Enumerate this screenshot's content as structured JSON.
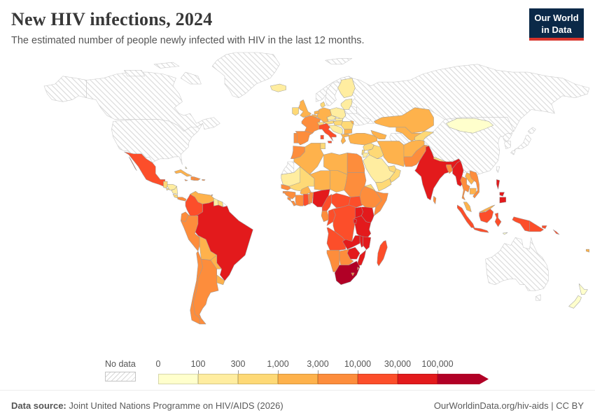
{
  "header": {
    "title": "New HIV infections, 2024",
    "subtitle": "The estimated number of people newly infected with HIV in the last 12 months.",
    "logo": {
      "line1": "Our World",
      "line2": "in Data"
    }
  },
  "colors": {
    "logo_bg": "#0b2948",
    "logo_accent": "#d8352c",
    "title_text": "#383838",
    "muted_text": "#5b5b5b",
    "border_stroke": "#9a9a9a",
    "nodata_stroke": "#cccccc"
  },
  "legend": {
    "no_data_label": "No data",
    "tick_labels": [
      "0",
      "100",
      "300",
      "1,000",
      "3,000",
      "10,000",
      "30,000",
      "100,000"
    ],
    "colors": [
      "#ffffcc",
      "#ffeda0",
      "#fed976",
      "#feb24c",
      "#fd8d3c",
      "#fc4e2a",
      "#e31a1c",
      "#b10026"
    ]
  },
  "footer": {
    "source_label": "Data source:",
    "source_text": " Joint United Nations Programme on HIV/AIDS (2026)",
    "link_text": "OurWorldinData.org/hiv-aids | CC BY"
  },
  "chart_data": {
    "type": "choropleth-map",
    "title": "New HIV infections, 2024",
    "unit": "people newly infected with HIV in the last 12 months",
    "bin_edges": [
      "0",
      "100",
      "300",
      "1,000",
      "3,000",
      "10,000",
      "30,000",
      "100,000"
    ],
    "bin_colors": {
      "0-100": "#ffffcc",
      "100-300": "#ffeda0",
      "300-1,000": "#fed976",
      "1,000-3,000": "#feb24c",
      "3,000-10,000": "#fd8d3c",
      "10,000-30,000": "#fc4e2a",
      "30,000-100,000": "#e31a1c",
      "100,000+": "#b10026"
    },
    "countries": {
      "Russia": "no-data",
      "Canada": "no-data",
      "United States": "no-data",
      "Greenland": "no-data",
      "China": "no-data",
      "Australia": "no-data",
      "Norway": "no-data",
      "Sweden": "no-data",
      "Ukraine": "no-data",
      "Belarus": "no-data",
      "Turkmenistan": "no-data",
      "Japan": "no-data",
      "North Korea": "no-data",
      "South Korea": "no-data",
      "Taiwan": "no-data",
      "Western Sahara": "no-data",
      "French Guiana": "no-data",
      "Kazakhstan": "1,000-3,000",
      "Mongolia": "0-100",
      "Finland": "100-300",
      "Baltic states": "100-300",
      "Poland": "100-300",
      "Germany": "1,000-3,000",
      "Denmark": "300-1,000",
      "Netherlands": "1,000-3,000",
      "Belgium": "1,000-3,000",
      "France": "3,000-10,000",
      "Spain": "3,000-10,000",
      "Portugal": "3,000-10,000",
      "United Kingdom": "1,000-3,000",
      "Ireland": "300-1,000",
      "Iceland": "100-300",
      "Switzerland": "300-1,000",
      "Austria": "300-1,000",
      "Czechia": "100-300",
      "Slovakia": "100-300",
      "Hungary": "300-1,000",
      "Balkans": "100-300",
      "Romania": "300-1,000",
      "Bulgaria": "1,000-3,000",
      "Greece": "1,000-3,000",
      "Moldova": "1,000-3,000",
      "Italy": "10,000-30,000",
      "Turkey": "1,000-3,000",
      "Caucasus": "1,000-3,000",
      "Syria": "300-1,000",
      "Iraq": "300-1,000",
      "Israel": "300-1,000",
      "Jordan": "100-300",
      "Saudi Arabia": "100-300",
      "Yemen": "300-1,000",
      "Oman": "300-1,000",
      "United Arab Emirates": "300-1,000",
      "Iran": "1,000-3,000",
      "Uzbekistan": "1,000-3,000",
      "Kyrgyzstan-Tajikistan": "300-1,000",
      "Afghanistan": "1,000-3,000",
      "Pakistan": "3,000-10,000",
      "India": "30,000-100,000",
      "Nepal": "300-1,000",
      "Bangladesh": "3,000-10,000",
      "Sri Lanka": "3,000-10,000",
      "Myanmar": "30,000-100,000",
      "Thailand": "3,000-10,000",
      "Laos": "1,000-3,000",
      "Cambodia": "1,000-3,000",
      "Vietnam": "3,000-10,000",
      "Malaysia": "1,000-3,000",
      "Indonesia": "10,000-30,000",
      "Timor-Leste": "0-100",
      "Papua New Guinea": "10,000-30,000",
      "Philippines": "30,000-100,000",
      "Solomon Islands": "10,000-30,000",
      "Fiji": "1,000-3,000",
      "New Zealand": "0-100",
      "Morocco": "3,000-10,000",
      "Algeria": "1,000-3,000",
      "Tunisia": "300-1,000",
      "Libya": "1,000-3,000",
      "Egypt": "3,000-10,000",
      "Mauritania": "100-300",
      "Mali": "300-1,000",
      "Senegal": "3,000-10,000",
      "Guinea-Bissau": "3,000-10,000",
      "Guinea": "3,000-10,000",
      "Sierra Leone": "3,000-10,000",
      "Liberia": "3,000-10,000",
      "Ivory Coast": "3,000-10,000",
      "Burkina Faso": "1,000-3,000",
      "Ghana": "10,000-30,000",
      "Togo": "3,000-10,000",
      "Benin": "3,000-10,000",
      "Niger": "1,000-3,000",
      "Nigeria": "30,000-100,000",
      "Chad": "1,000-3,000",
      "Sudan": "3,000-10,000",
      "South Sudan": "10,000-30,000",
      "Eritrea": "300-1,000",
      "Ethiopia": "3,000-10,000",
      "Somalia": "3,000-10,000",
      "Cameroon": "10,000-30,000",
      "Central African Republic": "10,000-30,000",
      "Gabon": "3,000-10,000",
      "Congo": "10,000-30,000",
      "Democratic Republic of Congo": "10,000-30,000",
      "Uganda": "30,000-100,000",
      "Kenya": "30,000-100,000",
      "Tanzania": "30,000-100,000",
      "Rwanda-Burundi": "30,000-100,000",
      "Angola": "10,000-30,000",
      "Zambia": "30,000-100,000",
      "Malawi": "30,000-100,000",
      "Mozambique": "30,000-100,000",
      "Zimbabwe": "30,000-100,000",
      "Botswana": "3,000-10,000",
      "Namibia": "3,000-10,000",
      "South Africa": "100,000+",
      "Lesotho": "3,000-10,000",
      "Eswatini": "3,000-10,000",
      "Madagascar": "10,000-30,000",
      "Mexico": "10,000-30,000",
      "Guatemala": "300-1,000",
      "El Salvador": "300-1,000",
      "Honduras": "100-300",
      "Nicaragua": "100-300",
      "Costa Rica": "300-1,000",
      "Panama": "3,000-10,000",
      "Cuba": "1,000-3,000",
      "Jamaica": "3,000-10,000",
      "Haiti": "3,000-10,000",
      "Dominican Republic": "3,000-10,000",
      "Puerto Rico": "3,000-10,000",
      "Bahamas": "100-300",
      "Trinidad and Tobago": "3,000-10,000",
      "Colombia": "10,000-30,000",
      "Venezuela": "1,000-3,000",
      "Guyana": "100-300",
      "Suriname": "300-1,000",
      "Ecuador": "3,000-10,000",
      "Brazil": "30,000-100,000",
      "Peru": "3,000-10,000",
      "Bolivia": "1,000-3,000",
      "Paraguay": "1,000-3,000",
      "Uruguay": "1,000-3,000",
      "Argentina": "3,000-10,000",
      "Chile": "3,000-10,000"
    }
  }
}
